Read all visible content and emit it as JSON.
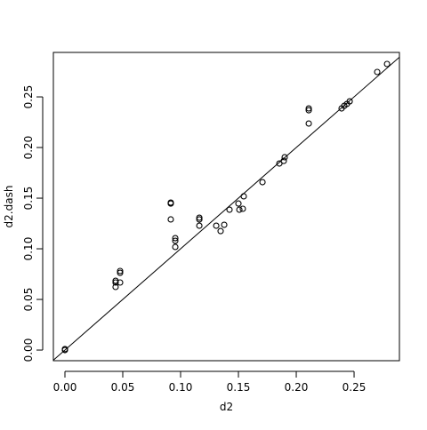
{
  "chart_data": {
    "type": "scatter",
    "xlabel": "d2",
    "ylabel": "d2.dash",
    "x": [
      0,
      0,
      0.0438,
      0.0438,
      0.0438,
      0.0477,
      0.0477,
      0.0477,
      0.0915,
      0.0915,
      0.0915,
      0.0954,
      0.0954,
      0.0954,
      0.1162,
      0.1162,
      0.1162,
      0.1308,
      0.1346,
      0.1377,
      0.1423,
      0.15,
      0.1508,
      0.1538,
      0.1546,
      0.1708,
      0.1854,
      0.1892,
      0.19,
      0.2108,
      0.2108,
      0.2108,
      0.2392,
      0.2415,
      0.2438,
      0.2462,
      0.27,
      0.2785
    ],
    "values": [
      0,
      0.001,
      0.0684,
      0.0667,
      0.0623,
      0.0781,
      0.0763,
      0.0667,
      0.1456,
      0.1447,
      0.129,
      0.1105,
      0.1079,
      0.1018,
      0.1307,
      0.129,
      0.1228,
      0.1228,
      0.1175,
      0.1237,
      0.1386,
      0.1447,
      0.1386,
      0.1395,
      0.1518,
      0.1658,
      0.1842,
      0.1868,
      0.1904,
      0.2386,
      0.2368,
      0.2237,
      0.2386,
      0.2412,
      0.243,
      0.2456,
      0.2746,
      0.2825
    ],
    "color": "#000000",
    "xlim": [
      -0.01,
      0.2892
    ],
    "ylim": [
      -0.0105,
      0.2939
    ],
    "xticks": [
      {
        "value": 0,
        "label": "0.00"
      },
      {
        "value": 0.05,
        "label": "0.05"
      },
      {
        "value": 0.1,
        "label": "0.10"
      },
      {
        "value": 0.15,
        "label": "0.15"
      },
      {
        "value": 0.2,
        "label": "0.20"
      },
      {
        "value": 0.25,
        "label": "0.25"
      }
    ],
    "yticks": [
      {
        "value": 0,
        "label": "0.00"
      },
      {
        "value": 0.05,
        "label": "0.05"
      },
      {
        "value": 0.1,
        "label": "0.10"
      },
      {
        "value": 0.15,
        "label": "0.15"
      },
      {
        "value": 0.2,
        "label": "0.20"
      },
      {
        "value": 0.25,
        "label": "0.25"
      }
    ],
    "abline": {
      "intercept": 0,
      "slope": 1
    }
  }
}
